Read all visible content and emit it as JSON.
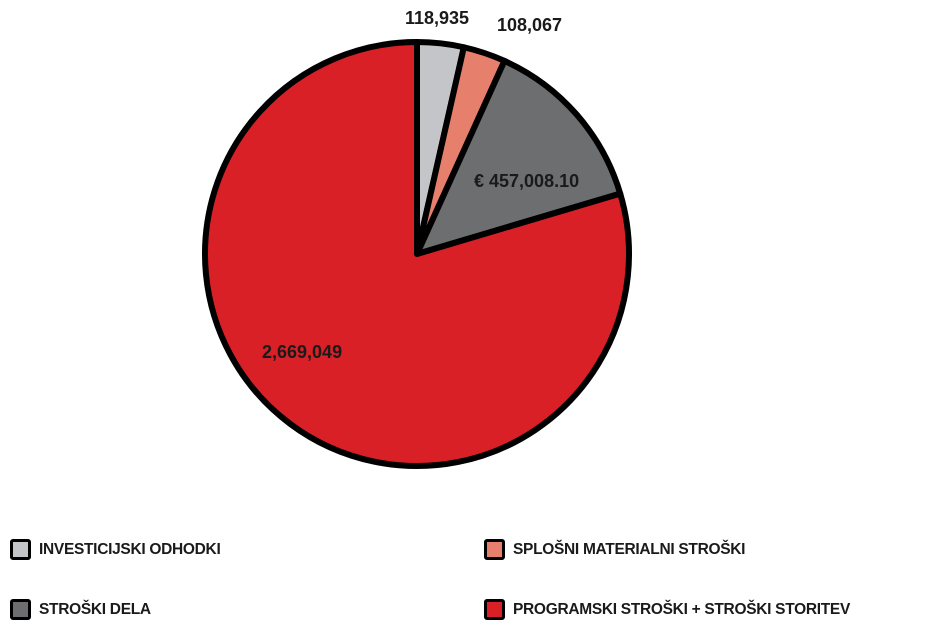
{
  "chart_data": {
    "type": "pie",
    "categories": [
      "INVESTICIJSKI ODHODKI",
      "SPLOŠNI MATERIALNI STROŠKI",
      "STROŠKI DELA",
      "PROGRAMSKI STROŠKI + STROŠKI STORITEV"
    ],
    "values": [
      118935,
      108067,
      457008.1,
      2669049
    ],
    "data_labels": [
      "118,935",
      "108,067",
      "€ 457,008.10",
      "2,669,049"
    ],
    "colors": [
      "#c4c5c9",
      "#e67f6c",
      "#6d6e70",
      "#d92027"
    ],
    "start_angle_deg": 0,
    "direction": "clockwise",
    "legend_position": "bottom"
  }
}
